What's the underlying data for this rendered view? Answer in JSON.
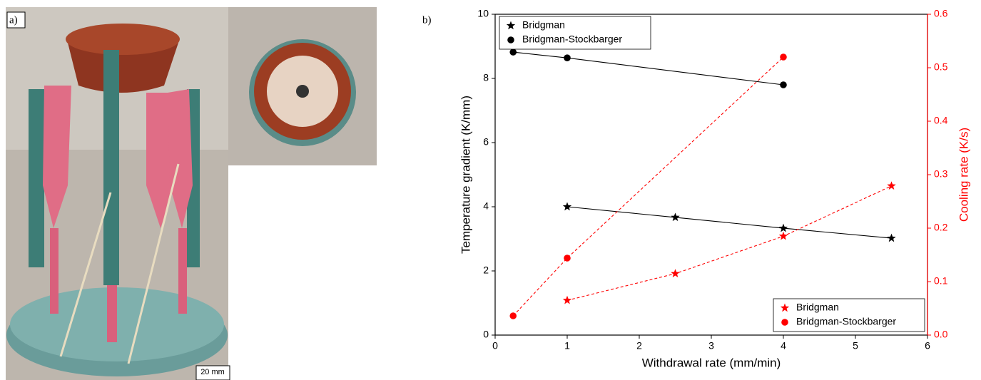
{
  "panels": {
    "a_label": "a)",
    "scale_bar": "20 mm",
    "b_label": "b)"
  },
  "chart_data": {
    "type": "line",
    "xlabel": "Withdrawal rate (mm/min)",
    "ylabel": "Temperature gradient (K/mm)",
    "y2label": "Cooling rate (K/s)",
    "xlim": [
      0,
      6
    ],
    "xticks": [
      0,
      1,
      2,
      3,
      4,
      5,
      6
    ],
    "ylim": [
      0,
      10
    ],
    "yticks": [
      0,
      2,
      4,
      6,
      8,
      10
    ],
    "y2lim": [
      0,
      0.6
    ],
    "y2ticks": [
      {
        "value": 0,
        "label": "0.0"
      },
      0.1,
      0.2,
      0.3,
      0.4,
      0.5,
      0.6
    ],
    "y2color": "#ff0000",
    "grid": false,
    "legends": [
      {
        "axis": "y",
        "position": "upper left"
      },
      {
        "axis": "y2",
        "position": "lower right"
      }
    ],
    "series": [
      {
        "name": "Bridgman",
        "color": "#000000",
        "marker": "star",
        "linestyle": "solid",
        "axis": "y",
        "x": [
          1,
          2.5,
          4,
          5.5
        ],
        "values": [
          4.0,
          3.67,
          3.33,
          3.02
        ]
      },
      {
        "name": "Bridgman-Stockbarger",
        "color": "#000000",
        "marker": "circle",
        "linestyle": "solid",
        "axis": "y",
        "x": [
          0.25,
          1,
          4
        ],
        "values": [
          8.82,
          8.64,
          7.8
        ]
      },
      {
        "name": "Bridgman",
        "color": "#ff0000",
        "marker": "star",
        "linestyle": "dashed",
        "axis": "y2",
        "x": [
          1,
          2.5,
          4,
          5.5
        ],
        "values": [
          0.065,
          0.115,
          0.185,
          0.279
        ]
      },
      {
        "name": "Bridgman-Stockbarger",
        "color": "#ff0000",
        "marker": "circle",
        "linestyle": "dashed",
        "axis": "y2",
        "x": [
          0.25,
          1,
          4
        ],
        "values": [
          0.036,
          0.144,
          0.52
        ]
      }
    ]
  }
}
